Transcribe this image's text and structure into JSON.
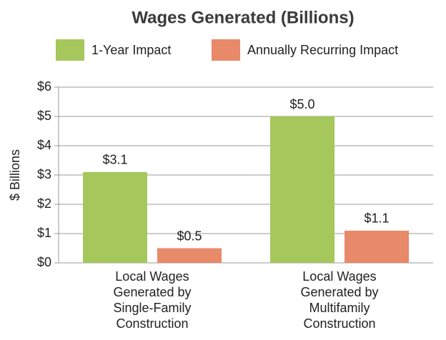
{
  "chart_data": {
    "type": "bar",
    "title": "Wages Generated (Billions)",
    "ylabel": "$ Billions",
    "categories": [
      [
        "Local Wages",
        "Generated by",
        "Single-Family",
        "Construction"
      ],
      [
        "Local Wages",
        "Generated by",
        "Multifamily",
        "Construction"
      ]
    ],
    "series": [
      {
        "name": "1-Year Impact",
        "color": "#a5c75b",
        "values": [
          3.1,
          5.0
        ],
        "value_labels": [
          "$3.1",
          "$5.0"
        ]
      },
      {
        "name": "Annually Recurring Impact",
        "color": "#e8896a",
        "values": [
          0.5,
          1.1
        ],
        "value_labels": [
          "$0.5",
          "$1.1"
        ]
      }
    ],
    "ylim": [
      0,
      6
    ],
    "yticks": [
      {
        "value": 0,
        "label": "$0"
      },
      {
        "value": 1,
        "label": "$1"
      },
      {
        "value": 2,
        "label": "$2"
      },
      {
        "value": 3,
        "label": "$3"
      },
      {
        "value": 4,
        "label": "$4"
      },
      {
        "value": 5,
        "label": "$5"
      },
      {
        "value": 6,
        "label": "$6"
      }
    ],
    "grid": true,
    "legend": "top"
  }
}
